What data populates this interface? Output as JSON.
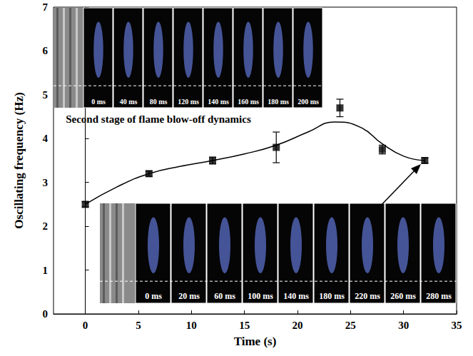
{
  "chart_data": {
    "type": "scatter",
    "xlabel": "Time (s)",
    "ylabel": "Oscillating frequency (Hz)",
    "xlim": [
      -3,
      35
    ],
    "xticks": [
      0,
      5,
      10,
      15,
      20,
      25,
      30,
      35
    ],
    "ylim": [
      0,
      7
    ],
    "yticks": [
      0,
      1,
      2,
      3,
      4,
      5,
      6,
      7
    ],
    "grid": false,
    "series": [
      {
        "type": "scatter",
        "marker": "square",
        "color": "#000000",
        "x": [
          0,
          6,
          12,
          18,
          24,
          28,
          32
        ],
        "values": [
          2.5,
          3.2,
          3.5,
          3.8,
          4.7,
          3.75,
          3.5
        ],
        "errors": [
          0.06,
          0.06,
          0.08,
          0.35,
          0.2,
          0.1,
          0.06
        ]
      },
      {
        "type": "line",
        "line_style": "solid",
        "color": "#000000",
        "x": [
          0,
          3,
          6,
          9,
          12,
          15,
          18,
          21,
          23.5,
          26,
          28,
          30,
          32
        ],
        "values": [
          2.5,
          2.9,
          3.2,
          3.37,
          3.5,
          3.65,
          3.85,
          4.15,
          4.38,
          4.25,
          3.88,
          3.6,
          3.5
        ]
      }
    ],
    "annotations": {
      "insets": [
        {
          "caption": "Second stage of flame blow-off dynamics",
          "frames": [
            "0 ms",
            "40 ms",
            "80 ms",
            "120 ms",
            "140 ms",
            "160 ms",
            "180 ms",
            "200 ms"
          ]
        },
        {
          "frames": [
            "0 ms",
            "20 ms",
            "60 ms",
            "100 ms",
            "140 ms",
            "180 ms",
            "220 ms",
            "260 ms",
            "280 ms"
          ]
        }
      ]
    }
  }
}
